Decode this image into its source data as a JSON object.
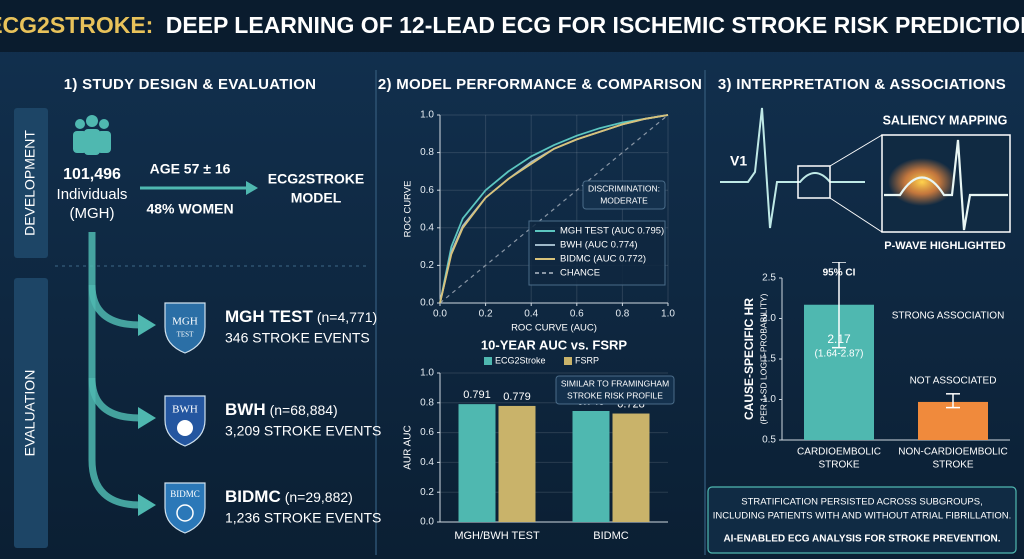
{
  "header": {
    "title_highlight": "ECG2STROKE:",
    "title": "DEEP LEARNING OF 12-LEAD ECG FOR ISCHEMIC STROKE RISK PREDICTION"
  },
  "panel1": {
    "heading": "1) STUDY DESIGN & EVALUATION",
    "development": "DEVELOPMENT",
    "evaluation": "EVALUATION",
    "count": "101,496",
    "count_unit": "Individuals",
    "count_source": "(MGH)",
    "age": "AGE 57 ± 16",
    "women": "48% WOMEN",
    "model": [
      "ECG2STROKE",
      "MODEL"
    ],
    "cohorts": [
      {
        "logo": "MGH",
        "logo_sub": "TEST",
        "name": "MGH TEST",
        "n": "(n=4,771)",
        "events": "346 STROKE EVENTS"
      },
      {
        "logo": "BWH",
        "name": "BWH",
        "n": "(n=68,884)",
        "events": "3,209 STROKE EVENTS"
      },
      {
        "logo": "BIDMC",
        "name": "BIDMC",
        "n": "(n=29,882)",
        "events": "1,236 STROKE EVENTS"
      }
    ]
  },
  "panel2": {
    "heading": "2) MODEL PERFORMANCE & COMPARISON"
  },
  "panel3": {
    "heading": "3) INTERPRETATION & ASSOCIATIONS",
    "lead": "V1",
    "saliency": "SALIENCY MAPPING",
    "pwave": "P-WAVE HIGHLIGHTED",
    "footer": [
      "STRATIFICATION PERSISTED ACROSS SUBGROUPS,",
      "INCLUDING PATIENTS WITH AND WITHOUT ATRIAL FIBRILLATION."
    ],
    "tagline": "AI-ENABLED ECG ANALYSIS FOR STROKE PREVENTION."
  },
  "chart_data": [
    {
      "type": "line",
      "ylabel": "ROC CURVE",
      "xlabel": "ROC CURVE (AUC)",
      "annotation": [
        "DISCRIMINATION:",
        "MODERATE"
      ],
      "x": [
        0,
        0.05,
        0.1,
        0.2,
        0.3,
        0.4,
        0.5,
        0.6,
        0.7,
        0.8,
        0.9,
        1
      ],
      "series": [
        {
          "name": "MGH TEST (AUC 0.795)",
          "color": "#5cc6c0",
          "values": [
            0,
            0.3,
            0.45,
            0.6,
            0.7,
            0.78,
            0.84,
            0.89,
            0.93,
            0.96,
            0.98,
            1
          ]
        },
        {
          "name": "BWH (AUC 0.774)",
          "color": "#9fb9c9",
          "values": [
            0,
            0.27,
            0.41,
            0.56,
            0.66,
            0.75,
            0.82,
            0.87,
            0.91,
            0.95,
            0.98,
            1
          ]
        },
        {
          "name": "BIDMC (AUC 0.772)",
          "color": "#d8c27a",
          "values": [
            0,
            0.26,
            0.4,
            0.56,
            0.66,
            0.74,
            0.82,
            0.87,
            0.91,
            0.95,
            0.98,
            1
          ]
        },
        {
          "name": "CHANCE",
          "color": "#8a97a6",
          "dashed": true,
          "values": [
            0,
            0.05,
            0.1,
            0.2,
            0.3,
            0.4,
            0.5,
            0.6,
            0.7,
            0.8,
            0.9,
            1
          ]
        }
      ],
      "xlim": [
        0,
        1
      ],
      "ylim": [
        0,
        1
      ],
      "xticks": [
        {
          "value": 0,
          "label": "0.0"
        },
        0.2,
        0.4,
        0.6,
        0.8,
        {
          "value": 1,
          "label": "1.0"
        }
      ],
      "yticks": [
        {
          "value": 0,
          "label": "0.0"
        },
        0.2,
        0.4,
        0.6,
        0.8,
        {
          "value": 1,
          "label": "1.0"
        }
      ],
      "grid": true,
      "legend": "lower right"
    },
    {
      "type": "bar",
      "title": "10-YEAR AUC vs. FSRP",
      "ylabel": "AUR AUC",
      "annotation": [
        "SIMILAR TO FRAMINGHAM",
        "STROKE RISK PROFILE"
      ],
      "categories": [
        "MGH/BWH TEST",
        "BIDMC"
      ],
      "series": [
        {
          "name": "ECG2Stroke",
          "color": "#4fb8b0",
          "values": [
            0.791,
            0.745
          ]
        },
        {
          "name": "FSRP",
          "color": "#c9b36a",
          "values": [
            0.779,
            0.728
          ]
        }
      ],
      "ylim": [
        0,
        1
      ],
      "yticks": [
        {
          "value": 0,
          "label": "0.0"
        },
        0.2,
        0.4,
        0.6,
        0.8,
        {
          "value": 1,
          "label": "1.0"
        }
      ],
      "grid": true,
      "legend": "top"
    },
    {
      "type": "bar",
      "ylabel": "CAUSE-SPECIFIC HR",
      "ylabel_note": "(PER 1-SD LOGIT-PROBABILITY)",
      "categories": [
        [
          "CARDIOEMBOLIC",
          "STROKE"
        ],
        [
          "NON-CARDIOEMBOLIC",
          "STROKE"
        ]
      ],
      "values": [
        2.17,
        0.97
      ],
      "colors": [
        "#4fb8b0",
        "#f08a3c"
      ],
      "ci": [
        [
          1.64,
          2.87
        ],
        [
          0.9,
          1.07
        ]
      ],
      "ci_title": "95% CI",
      "ci_text": "(1.64-2.87)",
      "notes": [
        "STRONG ASSOCIATION",
        "NOT ASSOCIATED"
      ],
      "ylim": [
        0.5,
        2.5
      ],
      "yticks": [
        0.5,
        {
          "value": 1,
          "label": "1.0"
        },
        1.5,
        {
          "value": 2,
          "label": "2.0"
        },
        2.5
      ],
      "grid": false
    }
  ]
}
